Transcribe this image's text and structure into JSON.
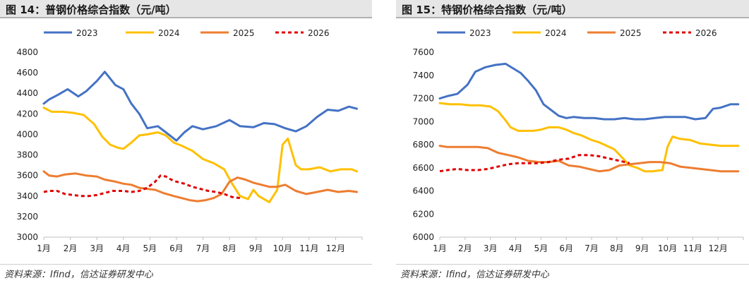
{
  "colors": {
    "2023": "#4472C4",
    "2024": "#FFC000",
    "2025": "#ED7D31",
    "2026": "#E00000"
  },
  "chart_data": [
    {
      "type": "line",
      "title": "图 14：普钢价格综合指数（元/吨）",
      "source": "资料来源：Ifind，信达证券研发中心",
      "xlabel": "",
      "ylabel": "",
      "x_ticks": [
        "1月",
        "2月",
        "3月",
        "4月",
        "5月",
        "6月",
        "7月",
        "8月",
        "9月",
        "10月",
        "11月",
        "12月"
      ],
      "x_range": [
        1,
        13
      ],
      "ylim": [
        3000,
        4800
      ],
      "y_ticks": [
        3000,
        3200,
        3400,
        3600,
        3800,
        4000,
        4200,
        4400,
        4600,
        4800
      ],
      "legend_position": "top",
      "series": [
        {
          "name": "2023",
          "style": "solid",
          "x": [
            1.0,
            1.2,
            1.5,
            1.9,
            2.3,
            2.6,
            3.0,
            3.3,
            3.7,
            4.0,
            4.3,
            4.6,
            4.9,
            5.3,
            5.6,
            6.0,
            6.3,
            6.6,
            7.0,
            7.5,
            8.0,
            8.4,
            8.9,
            9.3,
            9.7,
            10.1,
            10.5,
            10.9,
            11.3,
            11.7,
            12.1,
            12.5,
            12.8
          ],
          "y": [
            4300,
            4340,
            4380,
            4440,
            4370,
            4420,
            4520,
            4610,
            4480,
            4440,
            4300,
            4200,
            4060,
            4080,
            4020,
            3940,
            4020,
            4080,
            4050,
            4080,
            4140,
            4080,
            4070,
            4110,
            4100,
            4060,
            4030,
            4080,
            4170,
            4240,
            4230,
            4270,
            4250
          ]
        },
        {
          "name": "2024",
          "style": "solid",
          "x": [
            1.0,
            1.3,
            1.7,
            2.1,
            2.5,
            2.9,
            3.2,
            3.5,
            3.8,
            4.0,
            4.3,
            4.6,
            4.9,
            5.3,
            5.6,
            5.9,
            6.2,
            6.6,
            7.0,
            7.4,
            7.8,
            8.1,
            8.4,
            8.7,
            8.9,
            9.1,
            9.5,
            9.8,
            10.0,
            10.2,
            10.5,
            10.7,
            11.0,
            11.4,
            11.8,
            12.2,
            12.6,
            12.8
          ],
          "y": [
            4260,
            4220,
            4220,
            4210,
            4190,
            4100,
            3980,
            3900,
            3870,
            3860,
            3920,
            3990,
            4000,
            4020,
            3990,
            3920,
            3890,
            3840,
            3760,
            3720,
            3660,
            3520,
            3400,
            3370,
            3460,
            3400,
            3340,
            3460,
            3900,
            3960,
            3700,
            3660,
            3660,
            3680,
            3640,
            3660,
            3660,
            3640
          ]
        },
        {
          "name": "2025",
          "style": "solid",
          "x": [
            1.0,
            1.2,
            1.5,
            1.8,
            2.2,
            2.6,
            3.0,
            3.3,
            3.7,
            4.0,
            4.3,
            4.6,
            4.9,
            5.2,
            5.5,
            5.9,
            6.2,
            6.5,
            6.8,
            7.1,
            7.4,
            7.7,
            8.0,
            8.3,
            8.6,
            8.9,
            9.2,
            9.5,
            9.8,
            10.1,
            10.5,
            10.9,
            11.3,
            11.7,
            12.1,
            12.5,
            12.8
          ],
          "y": [
            3640,
            3600,
            3590,
            3610,
            3620,
            3600,
            3590,
            3560,
            3540,
            3520,
            3510,
            3480,
            3470,
            3460,
            3430,
            3400,
            3380,
            3360,
            3350,
            3360,
            3380,
            3420,
            3540,
            3580,
            3560,
            3530,
            3510,
            3490,
            3490,
            3510,
            3450,
            3420,
            3440,
            3460,
            3440,
            3450,
            3440
          ]
        },
        {
          "name": "2026",
          "style": "dashed",
          "x": [
            1.0,
            1.2,
            1.5,
            1.8,
            2.1,
            2.4,
            2.7,
            3.0,
            3.3,
            3.6,
            4.0,
            4.3,
            4.6,
            4.9,
            5.2,
            5.4,
            5.6,
            5.8,
            6.0,
            6.3,
            6.6,
            6.9,
            7.2,
            7.5,
            7.8,
            8.1,
            8.4
          ],
          "y": [
            3440,
            3450,
            3450,
            3420,
            3410,
            3400,
            3400,
            3410,
            3430,
            3450,
            3450,
            3440,
            3450,
            3480,
            3540,
            3600,
            3590,
            3560,
            3540,
            3520,
            3490,
            3470,
            3450,
            3440,
            3420,
            3390,
            3380
          ]
        }
      ]
    },
    {
      "type": "line",
      "title": "图 15：特钢价格综合指数（元/吨）",
      "source": "资料来源：Ifind，信达证券研发中心",
      "xlabel": "",
      "ylabel": "",
      "x_ticks": [
        "1月",
        "2月",
        "3月",
        "4月",
        "5月",
        "6月",
        "7月",
        "8月",
        "9月",
        "10月",
        "11月",
        "12月"
      ],
      "x_range": [
        1,
        13
      ],
      "ylim": [
        6000,
        7600
      ],
      "y_ticks": [
        6000,
        6200,
        6400,
        6600,
        6800,
        7000,
        7200,
        7400,
        7600
      ],
      "legend_position": "top",
      "series": [
        {
          "name": "2023",
          "style": "solid",
          "x": [
            1.0,
            1.3,
            1.7,
            2.1,
            2.4,
            2.8,
            3.2,
            3.6,
            3.9,
            4.2,
            4.5,
            4.8,
            5.1,
            5.4,
            5.7,
            6.0,
            6.3,
            6.7,
            7.1,
            7.5,
            7.9,
            8.3,
            8.7,
            9.1,
            9.5,
            9.9,
            10.3,
            10.7,
            11.1,
            11.5,
            11.8,
            12.1,
            12.5,
            12.8
          ],
          "y": [
            7200,
            7220,
            7240,
            7320,
            7430,
            7470,
            7490,
            7500,
            7460,
            7420,
            7350,
            7270,
            7150,
            7100,
            7050,
            7030,
            7040,
            7030,
            7030,
            7020,
            7020,
            7030,
            7020,
            7020,
            7030,
            7040,
            7040,
            7040,
            7020,
            7030,
            7110,
            7120,
            7150,
            7150
          ]
        },
        {
          "name": "2024",
          "style": "solid",
          "x": [
            1.0,
            1.4,
            1.8,
            2.2,
            2.6,
            3.0,
            3.3,
            3.6,
            3.8,
            4.1,
            4.4,
            4.7,
            5.0,
            5.3,
            5.7,
            6.0,
            6.3,
            6.6,
            7.0,
            7.3,
            7.6,
            7.9,
            8.2,
            8.5,
            8.8,
            9.1,
            9.4,
            9.8,
            10.0,
            10.2,
            10.5,
            10.9,
            11.3,
            11.7,
            12.1,
            12.5,
            12.8
          ],
          "y": [
            7160,
            7150,
            7150,
            7140,
            7140,
            7130,
            7090,
            7010,
            6950,
            6920,
            6920,
            6920,
            6930,
            6950,
            6950,
            6930,
            6900,
            6880,
            6840,
            6820,
            6790,
            6760,
            6690,
            6620,
            6600,
            6570,
            6570,
            6580,
            6780,
            6870,
            6850,
            6840,
            6810,
            6800,
            6790,
            6790,
            6790
          ]
        },
        {
          "name": "2025",
          "style": "solid",
          "x": [
            1.0,
            1.3,
            1.7,
            2.1,
            2.5,
            2.9,
            3.3,
            3.7,
            4.1,
            4.5,
            4.9,
            5.3,
            5.7,
            6.1,
            6.5,
            6.9,
            7.3,
            7.7,
            8.1,
            8.5,
            8.9,
            9.3,
            9.7,
            10.1,
            10.5,
            10.9,
            11.3,
            11.7,
            12.1,
            12.5,
            12.8
          ],
          "y": [
            6790,
            6780,
            6780,
            6780,
            6780,
            6770,
            6730,
            6710,
            6690,
            6660,
            6650,
            6650,
            6660,
            6620,
            6610,
            6590,
            6570,
            6580,
            6620,
            6630,
            6640,
            6650,
            6650,
            6640,
            6610,
            6600,
            6590,
            6580,
            6570,
            6570,
            6570
          ]
        },
        {
          "name": "2026",
          "style": "dashed",
          "x": [
            1.0,
            1.3,
            1.7,
            2.1,
            2.5,
            2.9,
            3.3,
            3.7,
            4.1,
            4.5,
            4.9,
            5.3,
            5.7,
            6.1,
            6.5,
            6.9,
            7.3,
            7.7,
            8.1,
            8.5
          ],
          "y": [
            6570,
            6580,
            6590,
            6580,
            6580,
            6590,
            6610,
            6630,
            6640,
            6640,
            6640,
            6650,
            6670,
            6680,
            6710,
            6710,
            6700,
            6680,
            6660,
            6640
          ]
        }
      ]
    }
  ]
}
